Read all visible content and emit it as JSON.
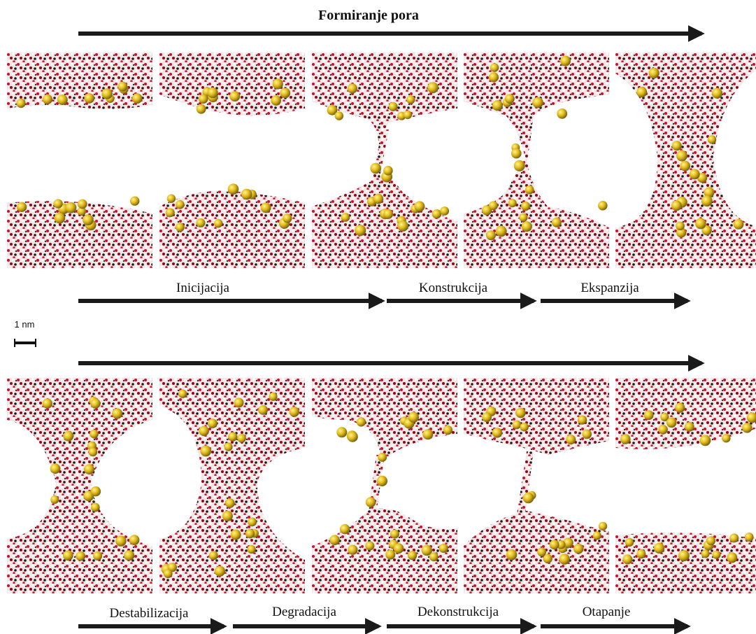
{
  "header": {
    "title": "Formiranje pora"
  },
  "top_stages": [
    "Inicijacija",
    "Konstrukcija",
    "Ekspanzija"
  ],
  "scale_bar": "1 nm",
  "bottom_stages": [
    "Destabilizacija",
    "Degradacija",
    "Dekonstrukcija",
    "Otapanje"
  ]
}
